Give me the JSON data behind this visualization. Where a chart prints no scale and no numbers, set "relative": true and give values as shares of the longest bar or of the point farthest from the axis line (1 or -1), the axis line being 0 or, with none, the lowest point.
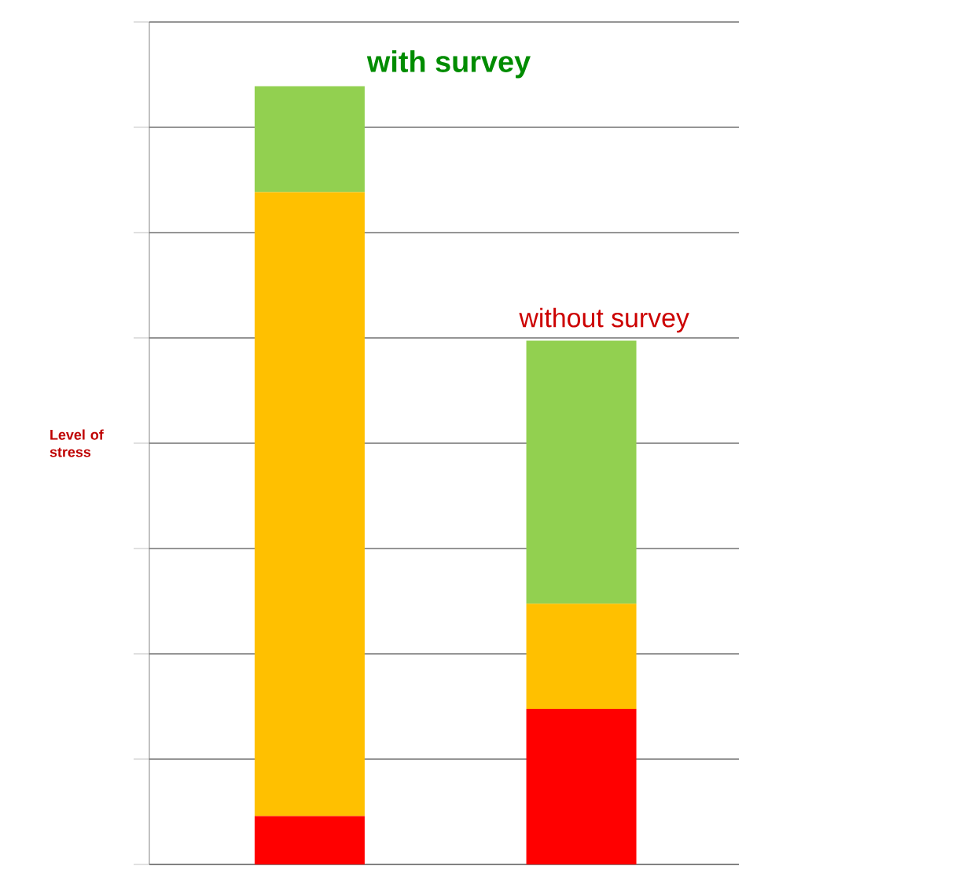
{
  "chart_data": {
    "type": "bar",
    "stacked": true,
    "relative": true,
    "grid": "y",
    "ylabel": "Level of stress",
    "categories": [
      null,
      null
    ],
    "series": [
      {
        "color": "#ff0000",
        "values": [
          0.062,
          0.2
        ]
      },
      {
        "color": "#ffc000",
        "values": [
          0.802,
          0.135
        ]
      },
      {
        "color": "#92d050",
        "values": [
          0.136,
          0.338
        ]
      }
    ],
    "annotations": [
      "with survey",
      "without survey"
    ]
  }
}
